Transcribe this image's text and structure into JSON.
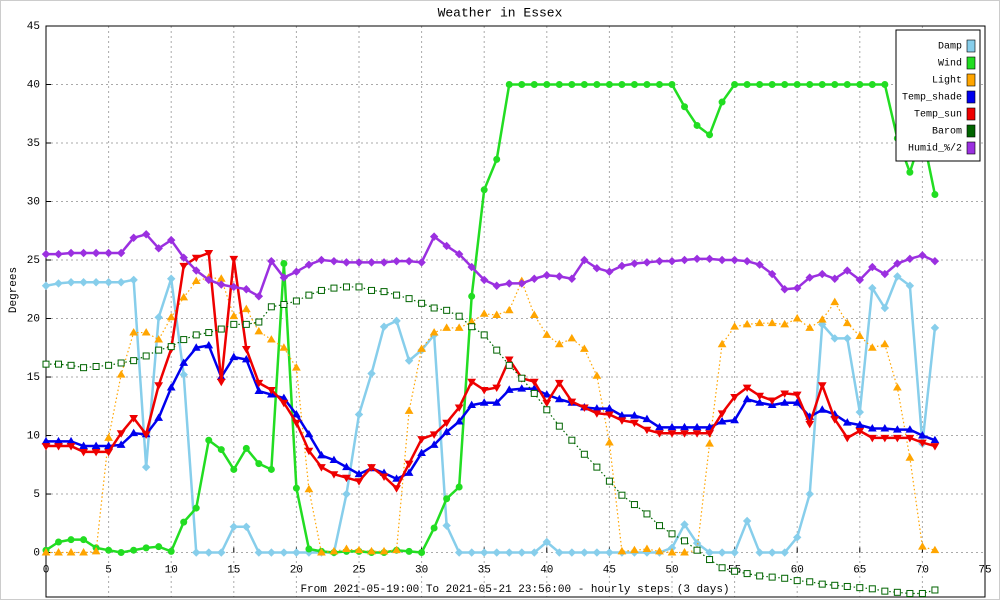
{
  "chart_data": {
    "type": "line",
    "title": "Weather in Essex",
    "ylabel": "Degrees",
    "xlabel": "From 2021-05-19:00 To 2021-05-21 23:56:00 - hourly steps (3 days)",
    "x": [
      0,
      1,
      2,
      3,
      4,
      5,
      6,
      7,
      8,
      9,
      10,
      11,
      12,
      13,
      14,
      15,
      16,
      17,
      18,
      19,
      20,
      21,
      22,
      23,
      24,
      25,
      26,
      27,
      28,
      29,
      30,
      31,
      32,
      33,
      34,
      35,
      36,
      37,
      38,
      39,
      40,
      41,
      42,
      43,
      44,
      45,
      46,
      47,
      48,
      49,
      50,
      51,
      52,
      53,
      54,
      55,
      56,
      57,
      58,
      59,
      60,
      61,
      62,
      63,
      64,
      65,
      66,
      67,
      68,
      69,
      70,
      71
    ],
    "xlim": [
      0,
      75
    ],
    "xticks": [
      0,
      5,
      10,
      15,
      20,
      25,
      30,
      35,
      40,
      45,
      50,
      55,
      60,
      65,
      70,
      75
    ],
    "ylim": [
      -3.8,
      45
    ],
    "yticks": [
      0,
      5,
      10,
      15,
      20,
      25,
      30,
      35,
      40,
      45
    ],
    "grid": true,
    "legend": "top-right",
    "series": [
      {
        "name": "Damp",
        "color": "#87ceeb",
        "marker": "diamond",
        "linestyle": "solid",
        "values": [
          22.8,
          23,
          23.1,
          23.1,
          23.1,
          23.1,
          23.1,
          23.3,
          7.3,
          20.1,
          23.4,
          15.2,
          0,
          0,
          0,
          2.2,
          2.2,
          0,
          0,
          0,
          0,
          0,
          0,
          0,
          5,
          11.8,
          15.3,
          19.3,
          19.8,
          16.4,
          17.3,
          18.6,
          2.3,
          0,
          0,
          0,
          0,
          0,
          0,
          0,
          0.9,
          0,
          0,
          0,
          0,
          0,
          0,
          0,
          0,
          0,
          0.4,
          2.4,
          0.8,
          0,
          0,
          0,
          2.7,
          0,
          0,
          0,
          1.3,
          5,
          19.5,
          18.3,
          18.3,
          12,
          22.6,
          20.9,
          23.6,
          22.8,
          9.3,
          19.2
        ]
      },
      {
        "name": "Wind",
        "color": "#22dd22",
        "marker": "circle",
        "linestyle": "solid",
        "values": [
          0.2,
          0.9,
          1.1,
          1.1,
          0.4,
          0.2,
          0,
          0.2,
          0.4,
          0.5,
          0.1,
          2.6,
          3.8,
          9.6,
          8.8,
          7.1,
          8.9,
          7.6,
          7.1,
          24.7,
          5.5,
          0.3,
          0.1,
          0,
          0.1,
          0.1,
          0,
          0,
          0.2,
          0.1,
          0,
          2.1,
          4.6,
          5.6,
          21.9,
          31,
          33.6,
          40,
          40,
          40,
          40,
          40,
          40,
          40,
          40,
          40,
          40,
          40,
          40,
          40,
          40,
          38.1,
          36.5,
          35.7,
          38.5,
          40,
          40,
          40,
          40,
          40,
          40,
          40,
          40,
          40,
          40,
          40,
          40,
          40,
          35.4,
          32.5,
          35.8,
          30.6
        ]
      },
      {
        "name": "Light",
        "color": "#ffa500",
        "marker": "triangle-up",
        "linestyle": "dotted",
        "values": [
          0,
          0,
          0,
          0,
          0.1,
          9.8,
          15.2,
          18.8,
          18.8,
          18.2,
          20.1,
          21.8,
          23.2,
          23.5,
          23.4,
          20.2,
          20.8,
          18.9,
          18.2,
          17.5,
          15.8,
          5.4,
          0,
          0.1,
          0.3,
          0.2,
          0.1,
          0.1,
          0.2,
          12.1,
          17.4,
          18.8,
          19.2,
          19.2,
          19.7,
          20.4,
          20.3,
          20.7,
          23.2,
          20.3,
          18.6,
          17.8,
          18.3,
          17.4,
          15.1,
          9.4,
          0.1,
          0.2,
          0.3,
          0.1,
          0,
          0,
          0.2,
          9.3,
          17.8,
          19.3,
          19.5,
          19.6,
          19.6,
          19.5,
          20,
          19.2,
          19.9,
          21.4,
          19.6,
          18.5,
          17.5,
          17.8,
          14.1,
          8.1,
          0.5,
          0.2
        ]
      },
      {
        "name": "Temp_shade",
        "color": "#0000ee",
        "marker": "triangle-up",
        "linestyle": "solid",
        "values": [
          9.5,
          9.5,
          9.5,
          9.1,
          9.1,
          9.1,
          9.2,
          10.2,
          10.1,
          11.5,
          14.1,
          16.2,
          17.5,
          17.7,
          15,
          16.7,
          16.5,
          13.8,
          13.5,
          13.2,
          11.8,
          10.1,
          8.3,
          7.9,
          7.3,
          6.7,
          7.2,
          6.8,
          6.3,
          6.8,
          8.5,
          9.2,
          10.3,
          11.2,
          12.6,
          12.8,
          12.8,
          13.9,
          14,
          14,
          13.5,
          13.1,
          12.8,
          12.4,
          12.3,
          12.3,
          11.7,
          11.7,
          11.4,
          10.7,
          10.7,
          10.7,
          10.7,
          10.7,
          11.2,
          11.3,
          13.1,
          12.8,
          12.6,
          12.8,
          12.8,
          11.6,
          12.2,
          11.8,
          11.1,
          10.9,
          10.6,
          10.6,
          10.5,
          10.5,
          10,
          9.6
        ]
      },
      {
        "name": "Temp_sun",
        "color": "#ee0000",
        "marker": "triangle-down",
        "linestyle": "solid",
        "values": [
          9.1,
          9.1,
          9.1,
          8.6,
          8.6,
          8.6,
          10.2,
          11.5,
          10.1,
          14.3,
          17.4,
          24.5,
          25.2,
          25.6,
          14.6,
          25.1,
          17.4,
          14.5,
          13.9,
          12.8,
          11.1,
          8.7,
          7.3,
          6.7,
          6.4,
          6.1,
          7.3,
          6.5,
          5.5,
          7.6,
          9.7,
          10.1,
          11.1,
          12.4,
          14.6,
          13.9,
          14.1,
          16.5,
          14.9,
          14.6,
          12.8,
          14.5,
          12.9,
          12.4,
          11.9,
          11.8,
          11.3,
          11.1,
          10.5,
          10.2,
          10.2,
          10.2,
          10.2,
          10.2,
          11.9,
          13.3,
          14.1,
          13.4,
          13,
          13.6,
          13.5,
          11,
          14.3,
          11.4,
          9.8,
          10.4,
          9.8,
          9.8,
          9.8,
          9.8,
          9.4,
          9.1
        ]
      },
      {
        "name": "Barom",
        "color": "#006400",
        "marker": "square",
        "linestyle": "dotted",
        "values": [
          16.1,
          16.1,
          16,
          15.8,
          15.9,
          16,
          16.2,
          16.4,
          16.8,
          17.3,
          17.6,
          18.2,
          18.6,
          18.8,
          19.1,
          19.5,
          19.5,
          19.7,
          21,
          21.2,
          21.5,
          22,
          22.4,
          22.6,
          22.7,
          22.7,
          22.4,
          22.3,
          22,
          21.7,
          21.3,
          20.9,
          20.7,
          20.2,
          19.3,
          18.6,
          17.3,
          16,
          14.9,
          13.6,
          12.2,
          10.8,
          9.6,
          8.4,
          7.3,
          6.1,
          4.9,
          4.1,
          3.3,
          2.3,
          1.6,
          1,
          0.2,
          -0.6,
          -1.3,
          -1.6,
          -1.8,
          -2,
          -2.1,
          -2.2,
          -2.4,
          -2.5,
          -2.7,
          -2.8,
          -2.9,
          -3,
          -3.1,
          -3.3,
          -3.4,
          -3.5,
          -3.5,
          -3.2
        ]
      },
      {
        "name": "Humid_%/2",
        "color": "#9b30e0",
        "marker": "diamond",
        "linestyle": "solid",
        "values": [
          25.5,
          25.5,
          25.6,
          25.6,
          25.6,
          25.6,
          25.6,
          26.9,
          27.2,
          26,
          26.7,
          25.2,
          24.1,
          23.3,
          22.9,
          22.7,
          22.5,
          21.9,
          24.9,
          23.5,
          24,
          24.6,
          25,
          24.9,
          24.8,
          24.8,
          24.8,
          24.8,
          24.9,
          24.9,
          24.8,
          27,
          26.2,
          25.5,
          24.4,
          23.3,
          22.8,
          23,
          23,
          23.4,
          23.7,
          23.6,
          23.4,
          25,
          24.3,
          24,
          24.5,
          24.7,
          24.8,
          24.9,
          24.9,
          25,
          25.1,
          25.1,
          25,
          25,
          24.9,
          24.6,
          23.8,
          22.5,
          22.6,
          23.5,
          23.8,
          23.4,
          24.1,
          23.3,
          24.4,
          23.8,
          24.7,
          25.1,
          25.4,
          24.9
        ]
      }
    ]
  }
}
